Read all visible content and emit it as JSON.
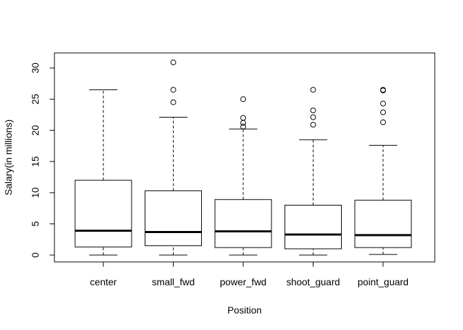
{
  "chart_data": {
    "type": "boxplot",
    "title": "",
    "xlabel": "Position",
    "ylabel": "Salary(in millions)",
    "ylim": [
      0,
      31
    ],
    "yticks": [
      0,
      5,
      10,
      15,
      20,
      25,
      30
    ],
    "grid": false,
    "legend": "none",
    "categories": [
      "center",
      "small_fwd",
      "power_fwd",
      "shoot_guard",
      "point_guard"
    ],
    "boxes": [
      {
        "whisker_low": 0.0,
        "q1": 1.3,
        "median": 3.9,
        "q3": 12.0,
        "whisker_high": 26.5,
        "outliers": []
      },
      {
        "whisker_low": 0.0,
        "q1": 1.5,
        "median": 3.7,
        "q3": 10.3,
        "whisker_high": 22.1,
        "outliers": [
          24.5,
          26.5,
          30.9
        ]
      },
      {
        "whisker_low": 0.0,
        "q1": 1.2,
        "median": 3.8,
        "q3": 8.9,
        "whisker_high": 20.2,
        "outliers": [
          20.6,
          21.2,
          22.0,
          25.0
        ]
      },
      {
        "whisker_low": 0.0,
        "q1": 1.0,
        "median": 3.3,
        "q3": 8.0,
        "whisker_high": 18.5,
        "outliers": [
          20.9,
          22.1,
          23.2,
          26.5
        ]
      },
      {
        "whisker_low": 0.1,
        "q1": 1.2,
        "median": 3.2,
        "q3": 8.8,
        "whisker_high": 17.6,
        "outliers": [
          21.3,
          22.9,
          24.3,
          26.4,
          26.5
        ]
      }
    ]
  }
}
